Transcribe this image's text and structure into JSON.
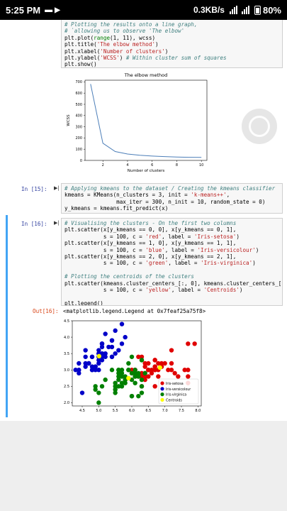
{
  "status_bar": {
    "time": "5:25 PM",
    "net_speed": "0.3KB/s",
    "battery": "80%"
  },
  "cells": [
    {
      "prompt": "",
      "lines": [
        [
          [
            "cm",
            "# Plotting the results onto a line graph,"
          ]
        ],
        [
          [
            "cm",
            "# `allowing us to observe 'The elbow'"
          ]
        ],
        [
          [
            "",
            "plt.plot("
          ],
          [
            "nm",
            "range"
          ],
          [
            "",
            "(1, 11), wcss)"
          ]
        ],
        [
          [
            "",
            "plt.title("
          ],
          [
            "st",
            "'The elbow method'"
          ],
          [
            "",
            ")"
          ]
        ],
        [
          [
            "",
            "plt.xlabel("
          ],
          [
            "st",
            "'Number of clusters'"
          ],
          [
            "",
            ")"
          ]
        ],
        [
          [
            "",
            "plt.ylabel("
          ],
          [
            "st",
            "'WCSS'"
          ],
          [
            "",
            ") "
          ],
          [
            "cm",
            "# Within cluster sum of squares"
          ]
        ],
        [
          [
            "",
            "plt.show()"
          ]
        ]
      ]
    },
    {
      "prompt": "In [15]:",
      "lines": [
        [
          [
            "cm",
            "# Applying kmeans to the dataset / Creating the kmeans classifier"
          ]
        ],
        [
          [
            "",
            "kmeans = KMeans(n_clusters = 3, init = "
          ],
          [
            "st",
            "'k-means++'"
          ],
          [
            "",
            ","
          ]
        ],
        [
          [
            "",
            "                max_iter = 300, n_init = 10, random_state = 0)"
          ]
        ],
        [
          [
            "",
            "y_kmeans = kmeans.fit_predict(x)"
          ]
        ]
      ]
    },
    {
      "prompt": "In [16]:",
      "lines": [
        [
          [
            "cm",
            "# Visualising the clusters - On the first two columns"
          ]
        ],
        [
          [
            "",
            "plt.scatter(x[y_kmeans == 0, 0], x[y_kmeans == 0, 1],"
          ]
        ],
        [
          [
            "",
            "            s = 100, c = "
          ],
          [
            "st",
            "'red'"
          ],
          [
            "",
            ", label = "
          ],
          [
            "st",
            "'Iris-setosa'"
          ],
          [
            "",
            ")"
          ]
        ],
        [
          [
            "",
            "plt.scatter(x[y_kmeans == 1, 0], x[y_kmeans == 1, 1],"
          ]
        ],
        [
          [
            "",
            "            s = 100, c = "
          ],
          [
            "st",
            "'blue'"
          ],
          [
            "",
            ", label = "
          ],
          [
            "st",
            "'Iris-versicolour'"
          ],
          [
            "",
            ")"
          ]
        ],
        [
          [
            "",
            "plt.scatter(x[y_kmeans == 2, 0], x[y_kmeans == 2, 1],"
          ]
        ],
        [
          [
            "",
            "            s = 100, c = "
          ],
          [
            "st",
            "'green'"
          ],
          [
            "",
            ", label = "
          ],
          [
            "st",
            "'Iris-virginica'"
          ],
          [
            "",
            ")"
          ]
        ],
        [
          [
            "",
            ""
          ]
        ],
        [
          [
            "cm",
            "# Plotting the centroids of the clusters"
          ]
        ],
        [
          [
            "",
            "plt.scatter(kmeans.cluster_centers_[:, 0], kmeans.cluster_centers_[:,"
          ]
        ],
        [
          [
            "",
            "            s = 100, c = "
          ],
          [
            "st",
            "'yellow'"
          ],
          [
            "",
            ", label = "
          ],
          [
            "st",
            "'Centroids'"
          ],
          [
            "",
            ")"
          ]
        ],
        [
          [
            "",
            ""
          ]
        ],
        [
          [
            "",
            "plt.legend()"
          ]
        ]
      ]
    }
  ],
  "output16": {
    "prompt": "Out[16]:",
    "text": "<matplotlib.legend.Legend at 0x7feaf25a75f8>"
  },
  "chart_data": [
    {
      "type": "line",
      "title": "The elbow method",
      "xlabel": "Number of clusters",
      "ylabel": "WCSS",
      "x": [
        1,
        2,
        3,
        4,
        5,
        6,
        7,
        8,
        9,
        10
      ],
      "y": [
        681,
        153,
        79,
        57,
        46,
        39,
        34,
        30,
        28,
        27
      ],
      "xlim": [
        0.55,
        10.45
      ],
      "ylim": [
        0,
        715
      ],
      "xticks": [
        2,
        4,
        6,
        8,
        10
      ],
      "yticks": [
        0,
        100,
        200,
        300,
        400,
        500,
        600,
        700
      ],
      "color": "#4c7eb8",
      "grid": false
    },
    {
      "type": "scatter",
      "title": "",
      "xlabel": "",
      "ylabel": "",
      "xlim": [
        4.2,
        8.1
      ],
      "ylim": [
        1.9,
        4.5
      ],
      "xticks": [
        4.5,
        5.0,
        5.5,
        6.0,
        6.5,
        7.0,
        7.5,
        8.0
      ],
      "yticks": [
        2.0,
        2.5,
        3.0,
        3.5,
        4.0,
        4.5
      ],
      "legend_position": "bottom-right",
      "series": [
        {
          "name": "Iris-setosa",
          "color": "#e00000",
          "points": [
            [
              6.3,
              3.3
            ],
            [
              6.5,
              3.0
            ],
            [
              7.1,
              3.0
            ],
            [
              6.3,
              2.9
            ],
            [
              6.5,
              3.0
            ],
            [
              7.6,
              3.0
            ],
            [
              7.3,
              2.9
            ],
            [
              6.7,
              2.5
            ],
            [
              7.2,
              3.6
            ],
            [
              6.5,
              3.2
            ],
            [
              6.4,
              2.7
            ],
            [
              6.8,
              3.0
            ],
            [
              6.4,
              3.2
            ],
            [
              7.7,
              3.8
            ],
            [
              7.7,
              2.6
            ],
            [
              6.9,
              3.2
            ],
            [
              7.7,
              2.8
            ],
            [
              6.7,
              3.3
            ],
            [
              7.2,
              3.2
            ],
            [
              6.2,
              2.8
            ],
            [
              6.4,
              2.8
            ],
            [
              7.2,
              3.0
            ],
            [
              7.4,
              2.8
            ],
            [
              7.9,
              3.8
            ],
            [
              6.3,
              2.8
            ],
            [
              7.7,
              3.0
            ],
            [
              6.3,
              3.4
            ],
            [
              6.4,
              3.1
            ],
            [
              6.9,
              3.1
            ],
            [
              6.7,
              3.1
            ],
            [
              6.9,
              3.1
            ],
            [
              6.8,
              3.2
            ],
            [
              6.7,
              3.3
            ],
            [
              6.7,
              3.0
            ],
            [
              6.5,
              3.0
            ],
            [
              6.2,
              3.4
            ],
            [
              6.6,
              3.0
            ],
            [
              6.8,
              2.8
            ],
            [
              6.7,
              3.0
            ],
            [
              6.0,
              2.9
            ],
            [
              6.6,
              2.9
            ],
            [
              6.1,
              3.0
            ],
            [
              6.4,
              2.9
            ],
            [
              7.0,
              3.2
            ],
            [
              6.9,
              3.1
            ],
            [
              6.3,
              2.5
            ],
            [
              6.7,
              3.1
            ],
            [
              6.1,
              2.8
            ],
            [
              6.0,
              3.0
            ],
            [
              6.5,
              2.8
            ],
            [
              5.8,
              2.7
            ],
            [
              6.1,
              3.0
            ]
          ]
        },
        {
          "name": "Iris-versicolour",
          "color": "#0000c8",
          "points": [
            [
              5.1,
              3.5
            ],
            [
              4.9,
              3.0
            ],
            [
              4.7,
              3.2
            ],
            [
              4.6,
              3.1
            ],
            [
              5.0,
              3.6
            ],
            [
              5.4,
              3.9
            ],
            [
              4.6,
              3.4
            ],
            [
              5.0,
              3.4
            ],
            [
              4.4,
              2.9
            ],
            [
              4.9,
              3.1
            ],
            [
              5.4,
              3.7
            ],
            [
              4.8,
              3.4
            ],
            [
              4.8,
              3.0
            ],
            [
              4.3,
              3.0
            ],
            [
              5.8,
              4.0
            ],
            [
              5.7,
              4.4
            ],
            [
              5.4,
              3.9
            ],
            [
              5.1,
              3.5
            ],
            [
              5.7,
              3.8
            ],
            [
              5.1,
              3.8
            ],
            [
              5.4,
              3.4
            ],
            [
              5.1,
              3.7
            ],
            [
              4.6,
              3.6
            ],
            [
              5.1,
              3.3
            ],
            [
              4.8,
              3.4
            ],
            [
              5.0,
              3.0
            ],
            [
              5.0,
              3.4
            ],
            [
              5.2,
              3.5
            ],
            [
              5.2,
              3.4
            ],
            [
              4.7,
              3.2
            ],
            [
              4.8,
              3.1
            ],
            [
              5.4,
              3.4
            ],
            [
              5.2,
              4.1
            ],
            [
              5.5,
              4.2
            ],
            [
              4.9,
              3.1
            ],
            [
              5.0,
              3.2
            ],
            [
              5.5,
              3.5
            ],
            [
              4.4,
              3.0
            ],
            [
              5.1,
              3.4
            ],
            [
              5.0,
              3.5
            ],
            [
              4.5,
              2.3
            ],
            [
              4.4,
              3.2
            ],
            [
              5.0,
              3.5
            ],
            [
              5.1,
              3.8
            ],
            [
              4.8,
              3.0
            ],
            [
              5.1,
              3.8
            ],
            [
              4.6,
              3.2
            ],
            [
              5.3,
              3.7
            ],
            [
              5.0,
              3.3
            ],
            [
              5.6,
              3.6
            ]
          ]
        },
        {
          "name": "Iris-virginica",
          "color": "#008000",
          "points": [
            [
              5.5,
              2.3
            ],
            [
              5.7,
              2.8
            ],
            [
              4.9,
              2.4
            ],
            [
              5.2,
              2.7
            ],
            [
              5.0,
              2.0
            ],
            [
              5.9,
              3.0
            ],
            [
              6.0,
              2.2
            ],
            [
              6.1,
              2.9
            ],
            [
              5.6,
              2.9
            ],
            [
              5.6,
              3.0
            ],
            [
              5.8,
              2.7
            ],
            [
              6.2,
              2.2
            ],
            [
              5.6,
              2.5
            ],
            [
              5.9,
              3.2
            ],
            [
              6.1,
              2.8
            ],
            [
              6.3,
              2.5
            ],
            [
              6.1,
              2.8
            ],
            [
              6.4,
              2.9
            ],
            [
              5.7,
              2.6
            ],
            [
              5.5,
              2.4
            ],
            [
              5.5,
              2.4
            ],
            [
              5.8,
              2.7
            ],
            [
              6.0,
              2.7
            ],
            [
              5.4,
              3.0
            ],
            [
              6.0,
              3.4
            ],
            [
              6.3,
              2.3
            ],
            [
              5.6,
              3.0
            ],
            [
              5.5,
              2.5
            ],
            [
              5.5,
              2.6
            ],
            [
              6.1,
              3.0
            ],
            [
              5.8,
              2.6
            ],
            [
              5.0,
              2.3
            ],
            [
              5.6,
              2.7
            ],
            [
              5.7,
              3.0
            ],
            [
              5.7,
              2.9
            ],
            [
              6.2,
              2.9
            ],
            [
              5.1,
              2.5
            ],
            [
              5.7,
              2.8
            ],
            [
              5.8,
              2.7
            ],
            [
              4.9,
              2.5
            ],
            [
              5.7,
              2.5
            ],
            [
              5.8,
              2.8
            ],
            [
              6.0,
              2.2
            ],
            [
              5.6,
              2.8
            ],
            [
              6.3,
              2.7
            ],
            [
              6.2,
              2.8
            ],
            [
              6.1,
              2.6
            ],
            [
              6.3,
              3.3
            ],
            [
              5.9,
              3.0
            ],
            [
              6.0,
              2.9
            ]
          ]
        },
        {
          "name": "Centroids",
          "color": "#ffff00",
          "points": [
            [
              6.85,
              3.07
            ],
            [
              5.01,
              3.42
            ],
            [
              5.9,
              2.75
            ]
          ]
        }
      ]
    }
  ]
}
